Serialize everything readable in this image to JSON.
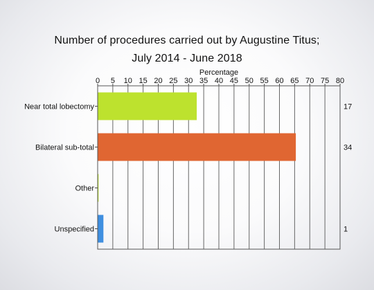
{
  "chart_data": {
    "type": "bar",
    "orientation": "horizontal",
    "title": "Number of procedures carried out by Augustine Titus;",
    "subtitle": "July 2014 - June 2018",
    "xlabel": "Percentage",
    "xlim": [
      0,
      80
    ],
    "x_ticks": [
      0,
      5,
      10,
      15,
      20,
      25,
      30,
      35,
      40,
      45,
      50,
      55,
      60,
      65,
      70,
      75,
      80
    ],
    "categories": [
      "Near total lobectomy",
      "Bilateral sub-total",
      "Other",
      "Unspecified"
    ],
    "values": [
      32.7,
      65.4,
      0.3,
      1.9
    ],
    "counts": [
      "17",
      "34",
      "",
      "1"
    ],
    "colors": [
      "#bde22e",
      "#e06632",
      "#bde22e",
      "#3f8fe0"
    ],
    "grid": true,
    "x_axis_position": "top"
  }
}
